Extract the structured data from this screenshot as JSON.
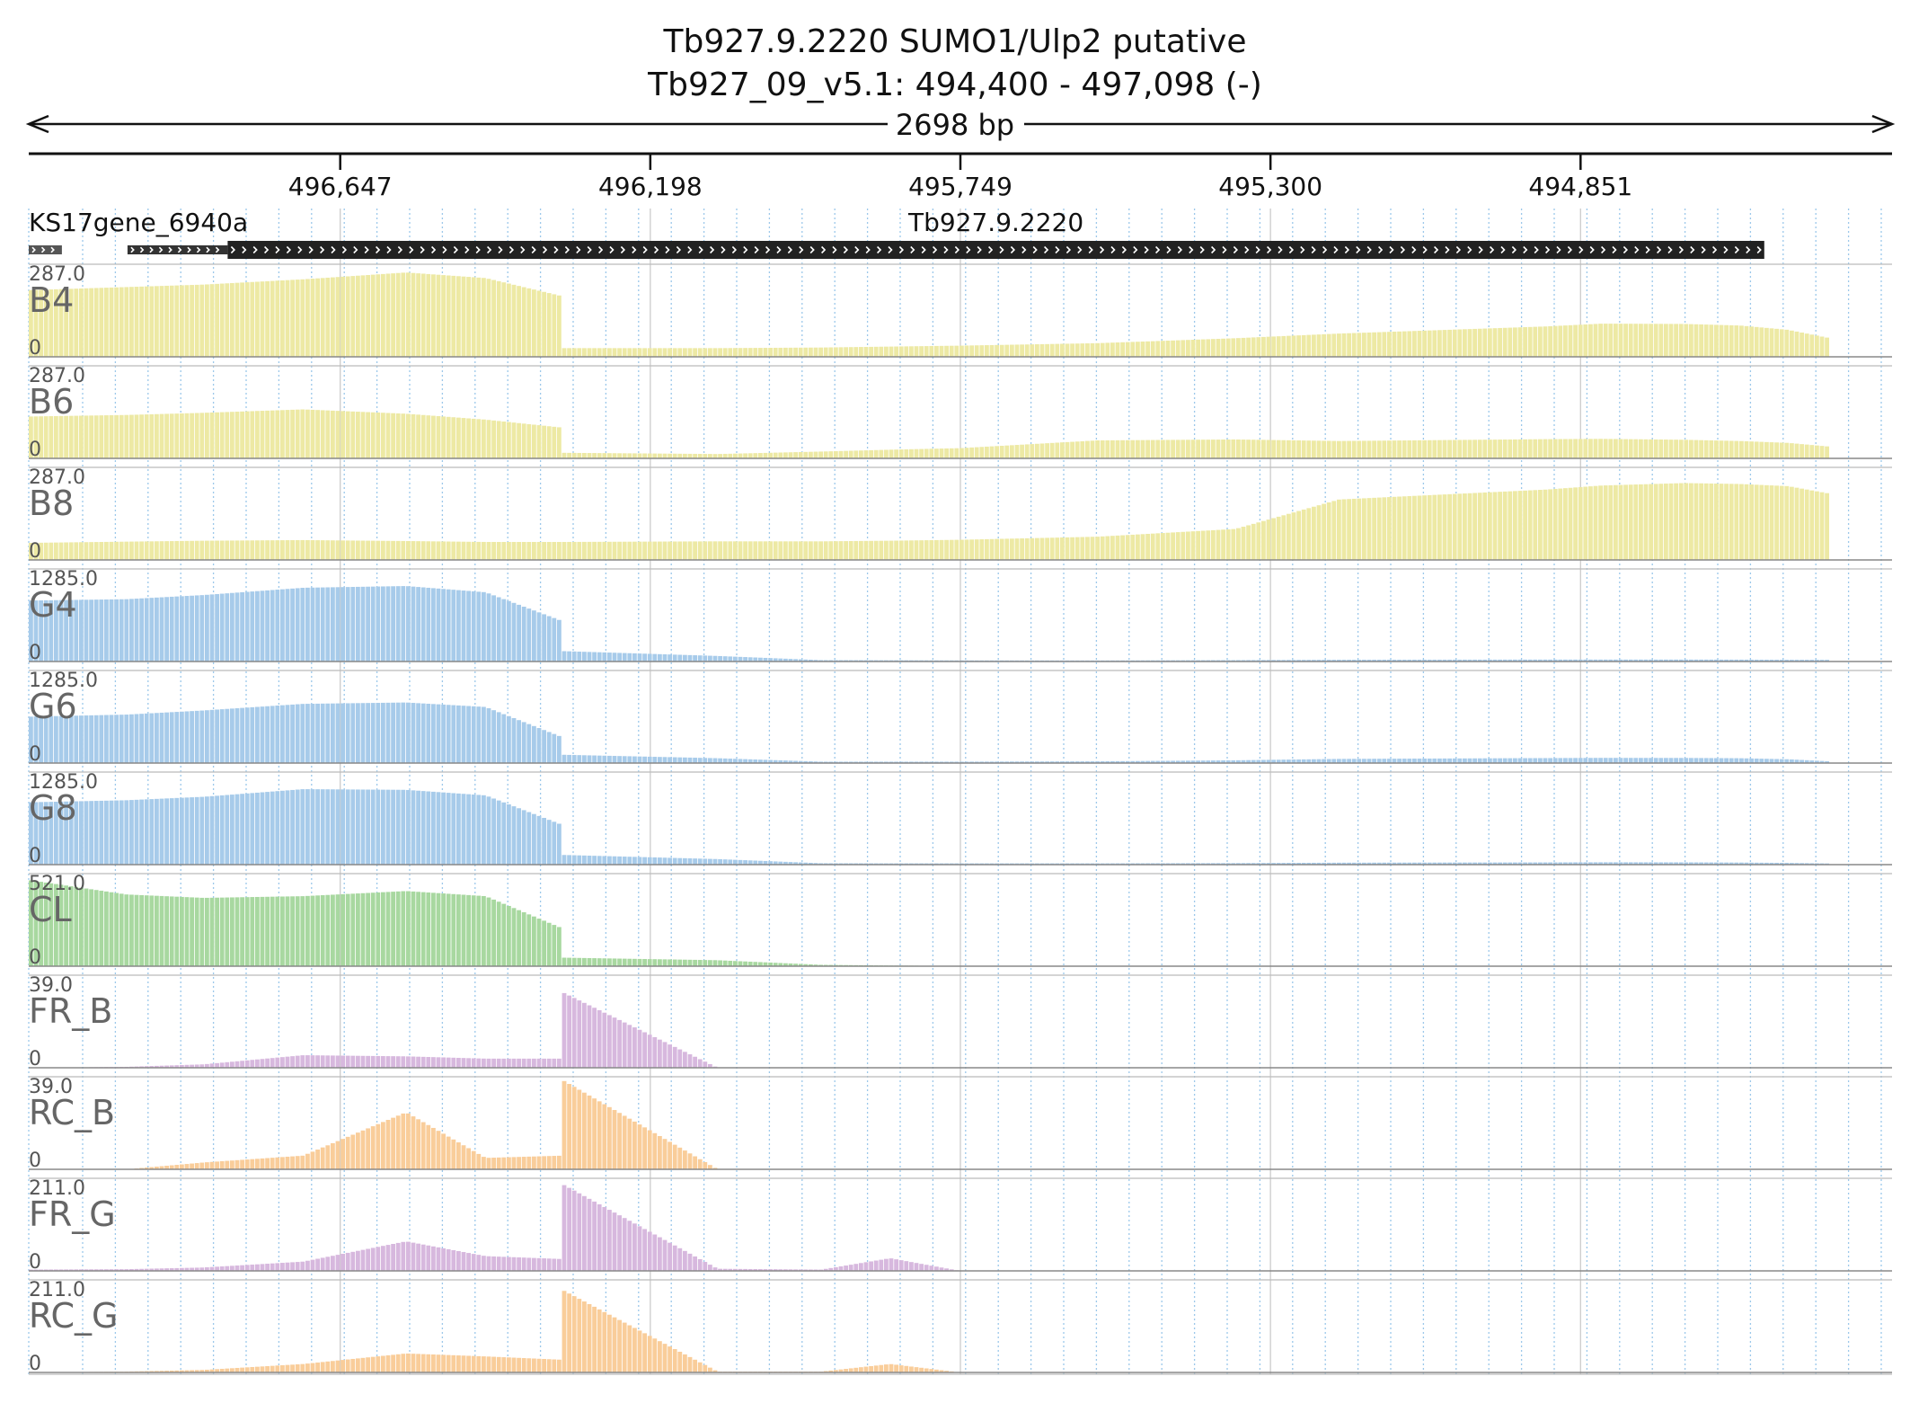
{
  "chart_data": {
    "type": "area",
    "title": "Tb927.9.2220  SUMO1/Ulp2  putative",
    "subtitle": "Tb927_09_v5.1: 494,400 - 497,098 (-)",
    "span_label": "2698 bp",
    "x_axis": {
      "reversed": true,
      "range": [
        497098,
        494400
      ],
      "ticks": [
        "496,647",
        "496,198",
        "495,749",
        "495,300",
        "494,851"
      ],
      "tick_values": [
        496647,
        496198,
        495749,
        495300,
        494851
      ]
    },
    "features": [
      {
        "label": "",
        "start": 497098,
        "end": 497050,
        "strand": "+"
      },
      {
        "label": "KS17gene_6940a",
        "start": 496955,
        "end": 496810,
        "strand": "+"
      },
      {
        "label": "Tb927.9.2220",
        "start": 496810,
        "end": 494585,
        "strand": "+"
      }
    ],
    "x": [
      497098,
      496956,
      496844,
      496700,
      496551,
      496436,
      496324,
      496324,
      496100,
      495950,
      495850,
      495749,
      495550,
      495350,
      495200,
      494900,
      494820,
      494700,
      494620,
      494550,
      494480,
      494492
    ],
    "tracks": [
      {
        "name": "B4",
        "max_label": "287.0",
        "zero_label": "0",
        "color": "#ede9a4",
        "values": [
          215,
          225,
          233,
          250,
          272,
          254,
          195,
          28,
          28,
          30,
          33,
          36,
          44,
          60,
          75,
          98,
          107,
          106,
          101,
          87,
          56,
          14
        ]
      },
      {
        "name": "B6",
        "max_label": "287.0",
        "zero_label": "0",
        "color": "#ede9a4",
        "values": [
          135,
          140,
          147,
          158,
          144,
          125,
          99,
          18,
          14,
          22,
          28,
          33,
          58,
          61,
          56,
          62,
          63,
          60,
          56,
          50,
          36,
          8
        ]
      },
      {
        "name": "B8",
        "max_label": "287.0",
        "zero_label": "0",
        "color": "#ede9a4",
        "values": [
          55,
          59,
          62,
          64,
          61,
          58,
          58,
          58,
          60,
          60,
          62,
          65,
          75,
          100,
          195,
          227,
          240,
          248,
          245,
          238,
          210,
          20
        ]
      },
      {
        "name": "G4",
        "max_label": "1285.0",
        "zero_label": "0",
        "color": "#a7cbea",
        "values": [
          880,
          900,
          960,
          1065,
          1090,
          1000,
          580,
          150,
          80,
          20,
          18,
          16,
          15,
          20,
          25,
          28,
          28,
          28,
          27,
          25,
          24,
          0
        ]
      },
      {
        "name": "G6",
        "max_label": "1285.0",
        "zero_label": "0",
        "color": "#a7cbea",
        "values": [
          670,
          700,
          760,
          855,
          875,
          810,
          370,
          120,
          70,
          20,
          20,
          20,
          25,
          40,
          60,
          72,
          75,
          74,
          70,
          55,
          20,
          0
        ]
      },
      {
        "name": "G8",
        "max_label": "1285.0",
        "zero_label": "0",
        "color": "#a7cbea",
        "values": [
          900,
          930,
          980,
          1090,
          1080,
          1000,
          570,
          140,
          80,
          20,
          18,
          18,
          18,
          22,
          28,
          32,
          34,
          33,
          30,
          25,
          15,
          0
        ]
      },
      {
        "name": "CL",
        "max_label": "521.0",
        "zero_label": "0",
        "color": "#a8d8a0",
        "values": [
          505,
          420,
          400,
          410,
          440,
          410,
          220,
          50,
          35,
          8,
          4,
          2,
          2,
          2,
          2,
          2,
          2,
          2,
          2,
          2,
          2,
          0
        ]
      },
      {
        "name": "FR_B",
        "max_label": "39.0",
        "zero_label": "0",
        "color": "#d7b8de",
        "values": [
          0,
          0.4,
          1.5,
          5.5,
          5,
          4,
          4,
          33,
          0,
          0,
          0,
          0,
          0,
          0,
          0,
          0,
          0,
          0,
          0,
          0,
          0,
          0
        ]
      },
      {
        "name": "RC_B",
        "max_label": "39.0",
        "zero_label": "0",
        "color": "#f9cd9a",
        "values": [
          0,
          0,
          3,
          6,
          25,
          5,
          6,
          39,
          0,
          0,
          0,
          0,
          0,
          0,
          0,
          0,
          0,
          0,
          0,
          0,
          0,
          0
        ]
      },
      {
        "name": "FR_G",
        "max_label": "211.0",
        "zero_label": "0",
        "color": "#d7b8de",
        "values": [
          3,
          4,
          8,
          22,
          70,
          35,
          28,
          205,
          5,
          3,
          30,
          0,
          0,
          0,
          0,
          0,
          0,
          0,
          0,
          0,
          0,
          0
        ]
      },
      {
        "name": "RC_G",
        "max_label": "211.0",
        "zero_label": "0",
        "color": "#f9cd9a",
        "values": [
          0,
          2,
          6,
          20,
          45,
          38,
          30,
          195,
          2,
          2,
          20,
          0,
          0,
          0,
          0,
          0,
          0,
          0,
          0,
          0,
          0,
          0
        ]
      }
    ],
    "grid": true
  }
}
